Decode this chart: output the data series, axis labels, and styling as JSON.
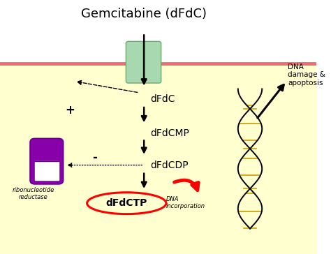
{
  "title": "Gemcitabine (dFdC)",
  "title_fontsize": 13,
  "background_color": "#ffffd0",
  "white_bg_color": "#ffffff",
  "cell_membrane_color": "#e87070",
  "transporter_color": "#a8d8b0",
  "transporter_edge": "#70a870",
  "labels": {
    "dFdC": "dFdC",
    "dFdCMP": "dFdCMP",
    "dFdCDP": "dFdCDP",
    "dFdCTP": "dFdCTP",
    "ribonucleotide": "ribonucleotide\nreductase",
    "DNA_damage": "DNA\ndamage &\napoptosis",
    "DNA_incorporation": "DNA\nincorporation"
  },
  "label_fontsize": 10,
  "small_fontsize": 7.5,
  "plus_sign": "+",
  "minus_sign": "-",
  "pill_color": "#8800aa",
  "pill_edge": "#660088"
}
